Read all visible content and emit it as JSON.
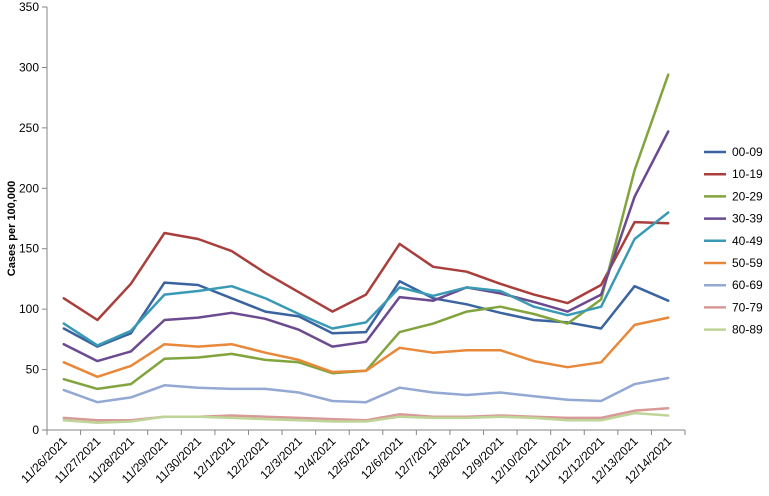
{
  "chart_data": {
    "type": "line",
    "title": "",
    "xlabel": "",
    "ylabel": "Cases per 100,000",
    "ylim": [
      0,
      350
    ],
    "yticks": [
      0,
      50,
      100,
      150,
      200,
      250,
      300,
      350
    ],
    "grid": false,
    "legend_position": "right",
    "categories": [
      "11/26/2021",
      "11/27/2021",
      "11/28/2021",
      "11/29/2021",
      "11/30/2021",
      "12/1/2021",
      "12/2/2021",
      "12/3/2021",
      "12/4/2021",
      "12/5/2021",
      "12/6/2021",
      "12/7/2021",
      "12/8/2021",
      "12/9/2021",
      "12/10/2021",
      "12/11/2021",
      "12/12/2021",
      "12/13/2021",
      "12/14/2021"
    ],
    "series": [
      {
        "name": "00-09",
        "color": "#3a64a0",
        "values": [
          84,
          69,
          80,
          122,
          120,
          109,
          98,
          94,
          80,
          81,
          123,
          109,
          104,
          97,
          91,
          89,
          84,
          119,
          107
        ]
      },
      {
        "name": "10-19",
        "color": "#a83f3c",
        "values": [
          109,
          91,
          121,
          163,
          158,
          148,
          130,
          114,
          98,
          112,
          154,
          135,
          131,
          121,
          112,
          105,
          120,
          172,
          171
        ]
      },
      {
        "name": "20-29",
        "color": "#82a43e",
        "values": [
          42,
          34,
          38,
          59,
          60,
          63,
          58,
          56,
          47,
          49,
          81,
          88,
          98,
          102,
          96,
          88,
          108,
          215,
          294
        ]
      },
      {
        "name": "30-39",
        "color": "#6b4a90",
        "values": [
          71,
          57,
          65,
          91,
          93,
          97,
          92,
          83,
          69,
          73,
          110,
          107,
          118,
          113,
          106,
          98,
          112,
          193,
          247
        ]
      },
      {
        "name": "40-49",
        "color": "#3a9ab5",
        "values": [
          88,
          70,
          82,
          112,
          115,
          119,
          109,
          96,
          84,
          89,
          118,
          111,
          118,
          115,
          102,
          95,
          102,
          158,
          180
        ]
      },
      {
        "name": "50-59",
        "color": "#e8883a",
        "values": [
          56,
          44,
          53,
          71,
          69,
          71,
          64,
          58,
          48,
          49,
          68,
          64,
          66,
          66,
          57,
          52,
          56,
          87,
          93
        ]
      },
      {
        "name": "60-69",
        "color": "#93a8d2",
        "values": [
          33,
          23,
          27,
          37,
          35,
          34,
          34,
          31,
          24,
          23,
          35,
          31,
          29,
          31,
          28,
          25,
          24,
          38,
          43
        ]
      },
      {
        "name": "70-79",
        "color": "#d89a98",
        "values": [
          10,
          8,
          8,
          11,
          11,
          12,
          11,
          10,
          9,
          8,
          13,
          11,
          11,
          12,
          11,
          10,
          10,
          16,
          18
        ]
      },
      {
        "name": "80-89",
        "color": "#bfd597",
        "values": [
          8,
          6,
          7,
          11,
          11,
          10,
          9,
          8,
          7,
          7,
          11,
          10,
          10,
          11,
          10,
          8,
          8,
          14,
          12
        ]
      }
    ]
  }
}
